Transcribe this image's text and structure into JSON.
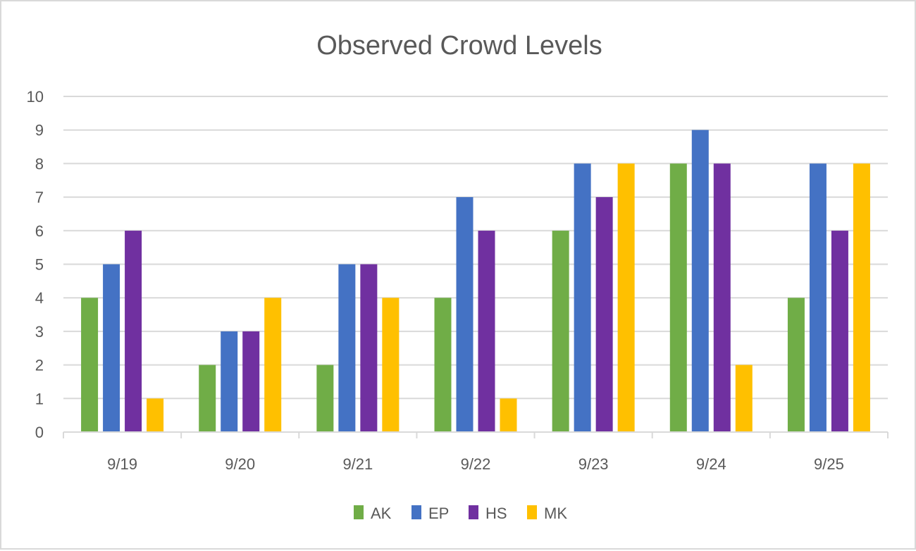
{
  "chart_data": {
    "type": "bar",
    "title": "Observed Crowd Levels",
    "xlabel": "",
    "ylabel": "",
    "categories": [
      "9/19",
      "9/20",
      "9/21",
      "9/22",
      "9/23",
      "9/24",
      "9/25"
    ],
    "series": [
      {
        "name": "AK",
        "color": "#70ad47",
        "values": [
          4,
          2,
          2,
          4,
          6,
          8,
          4
        ]
      },
      {
        "name": "EP",
        "color": "#4472c4",
        "values": [
          5,
          3,
          5,
          7,
          8,
          9,
          8
        ]
      },
      {
        "name": "HS",
        "color": "#7030a0",
        "values": [
          6,
          3,
          5,
          6,
          7,
          8,
          6
        ]
      },
      {
        "name": "MK",
        "color": "#ffc000",
        "values": [
          1,
          4,
          4,
          1,
          8,
          2,
          8
        ]
      }
    ],
    "ylim": [
      0,
      10
    ],
    "yticks": [
      "0",
      "1",
      "2",
      "3",
      "4",
      "5",
      "6",
      "7",
      "8",
      "9",
      "10"
    ],
    "grid": true,
    "legend_position": "bottom"
  }
}
